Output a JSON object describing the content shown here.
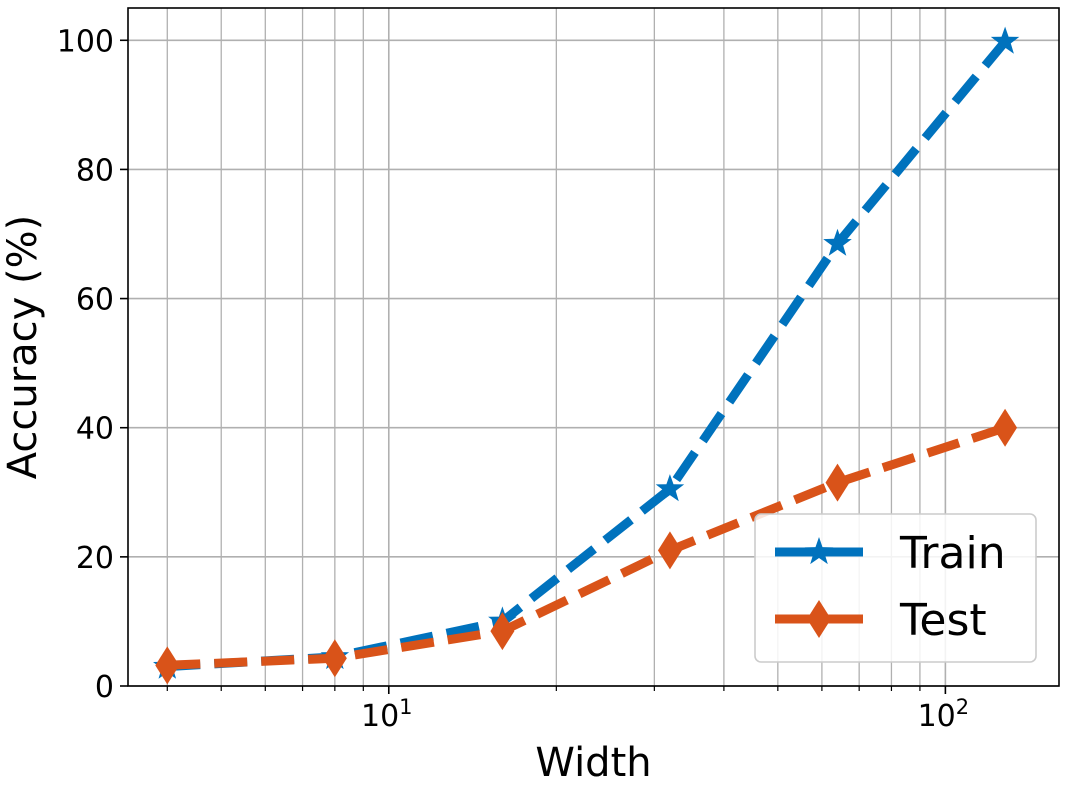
{
  "chart_data": {
    "type": "line",
    "xscale": "log",
    "xlabel": "Width",
    "ylabel": "Accuracy (%)",
    "xlim": [
      3.4,
      160
    ],
    "ylim": [
      0,
      105
    ],
    "x_ticks": [
      {
        "value": 10,
        "base": "10",
        "exp": "1"
      },
      {
        "value": 100,
        "base": "10",
        "exp": "2"
      }
    ],
    "y_ticks": [
      0,
      20,
      40,
      60,
      80,
      100
    ],
    "grid": true,
    "legend_position": "lower-right",
    "series": [
      {
        "name": "Train",
        "color": "#0072BD",
        "marker": "star",
        "linestyle": "dashed",
        "x": [
          4,
          8,
          16,
          32,
          64,
          128
        ],
        "y": [
          3,
          4.5,
          10,
          30.5,
          68.5,
          99.8
        ]
      },
      {
        "name": "Test",
        "color": "#D95319",
        "marker": "diamond",
        "linestyle": "dashed",
        "x": [
          4,
          8,
          16,
          32,
          64,
          128
        ],
        "y": [
          3.2,
          4.3,
          8.5,
          21,
          31.5,
          40
        ]
      }
    ]
  }
}
